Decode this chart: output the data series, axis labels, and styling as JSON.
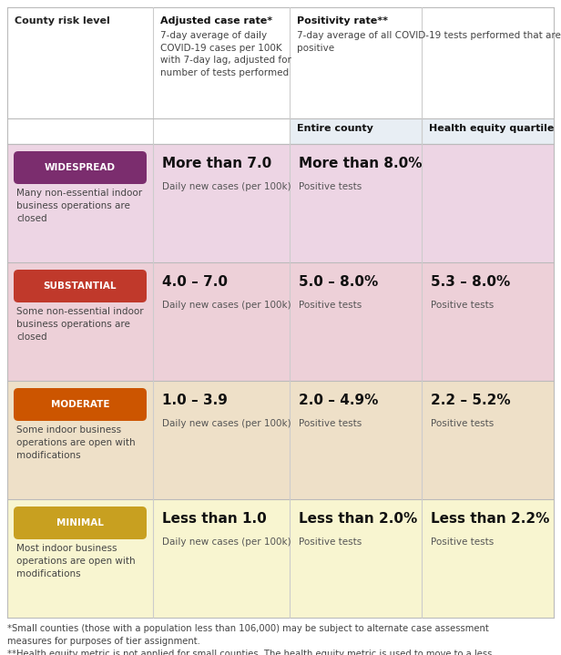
{
  "tiers": [
    {
      "name": "WIDESPREAD",
      "badge_color": "#7B2D6E",
      "row_color": "#EDD5E4",
      "description": "Many non-essential indoor\nbusiness operations are\nclosed",
      "case_rate_bold": "More than 7.0",
      "case_rate_sub": "Daily new cases (per 100k)",
      "entire_county_bold": "More than 8.0%",
      "entire_county_sub": "Positive tests",
      "health_equity_bold": "",
      "health_equity_sub": ""
    },
    {
      "name": "SUBSTANTIAL",
      "badge_color": "#C0392B",
      "row_color": "#EDD0D8",
      "description": "Some non-essential indoor\nbusiness operations are\nclosed",
      "case_rate_bold": "4.0 – 7.0",
      "case_rate_sub": "Daily new cases (per 100k)",
      "entire_county_bold": "5.0 – 8.0%",
      "entire_county_sub": "Positive tests",
      "health_equity_bold": "5.3 – 8.0%",
      "health_equity_sub": "Positive tests"
    },
    {
      "name": "MODERATE",
      "badge_color": "#CC5500",
      "row_color": "#EEE0C8",
      "description": "Some indoor business\noperations are open with\nmodifications",
      "case_rate_bold": "1.0 – 3.9",
      "case_rate_sub": "Daily new cases (per 100k)",
      "entire_county_bold": "2.0 – 4.9%",
      "entire_county_sub": "Positive tests",
      "health_equity_bold": "2.2 – 5.2%",
      "health_equity_sub": "Positive tests"
    },
    {
      "name": "MINIMAL",
      "badge_color": "#C8A020",
      "row_color": "#F8F5D0",
      "description": "Most indoor business\noperations are open with\nmodifications",
      "case_rate_bold": "Less than 1.0",
      "case_rate_sub": "Daily new cases (per 100k)",
      "entire_county_bold": "Less than 2.0%",
      "entire_county_sub": "Positive tests",
      "health_equity_bold": "Less than 2.2%",
      "health_equity_sub": "Positive tests"
    }
  ],
  "footnote_text": "*Small counties (those with a population less than 106,000) may be subject to alternate case assessment\nmeasures for purposes of tier assignment.\n**Health equity metric is not applied for small counties. The health equity metric is used to move to a less\nrestrictive tier.",
  "bg_color": "#FFFFFF",
  "subheader_bg": "#E8EEF4"
}
